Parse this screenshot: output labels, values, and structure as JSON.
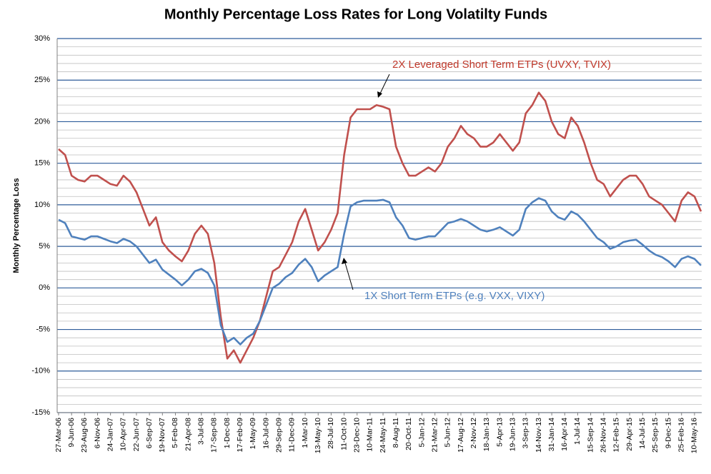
{
  "chart_data": {
    "type": "line",
    "title": "Monthly Percentage Loss Rates for Long Volatilty Funds",
    "y_label": "Monthly Percentage Loss",
    "categories": [
      "27-Mar-06",
      null,
      "9-Jun-06",
      null,
      "23-Aug-06",
      null,
      "6-Nov-06",
      null,
      "24-Jan-07",
      null,
      "10-Apr-07",
      null,
      "22-Jun-07",
      null,
      "6-Sep-07",
      null,
      "19-Nov-07",
      null,
      "5-Feb-08",
      null,
      "21-Apr-08",
      null,
      "3-Jul-08",
      null,
      "17-Sep-08",
      null,
      "1-Dec-08",
      null,
      "17-Feb-09",
      null,
      "1-May-09",
      null,
      "16-Jul-09",
      null,
      "29-Sep-09",
      null,
      "11-Dec-09",
      null,
      "1-Mar-10",
      null,
      "13-May-10",
      null,
      "28-Jul-10",
      null,
      "11-Oct-10",
      null,
      "23-Dec-10",
      null,
      "10-Mar-11",
      null,
      "24-May-11",
      null,
      "8-Aug-11",
      null,
      "20-Oct-11",
      null,
      "5-Jan-12",
      null,
      "21-Mar-12",
      null,
      "5-Jun-12",
      null,
      "17-Aug-12",
      null,
      "2-Nov-12",
      null,
      "18-Jan-13",
      null,
      "5-Apr-13",
      null,
      "19-Jun-13",
      null,
      "3-Sep-13",
      null,
      "14-Nov-13",
      null,
      "31-Jan-14",
      null,
      "16-Apr-14",
      null,
      "1-Jul-14",
      null,
      "15-Sep-14",
      null,
      "26-Nov-14",
      null,
      "12-Feb-15",
      null,
      "29-Apr-15",
      null,
      "14-Jul-15",
      null,
      "25-Sep-15",
      null,
      "9-Dec-15",
      null,
      "25-Feb-16",
      null,
      "10-May-16",
      null
    ],
    "series": [
      {
        "name": "2X Leveraged Short Term ETPs (UVXY, TVIX)",
        "color": "#c0504d",
        "values": [
          16.7,
          16,
          13.5,
          13,
          12.8,
          13.5,
          13.5,
          13,
          12.5,
          12.3,
          13.5,
          12.8,
          11.5,
          9.5,
          7.5,
          8.5,
          5.5,
          4.5,
          3.8,
          3.2,
          4.5,
          6.5,
          7.5,
          6.5,
          3.0,
          -3.5,
          -8.5,
          -7.5,
          -9.0,
          -7.5,
          -6.0,
          -4.0,
          -1.0,
          2.0,
          2.5,
          4,
          5.5,
          8,
          9.5,
          7,
          4.5,
          5.5,
          7,
          9,
          16,
          20.5,
          21.5,
          21.5,
          21.5,
          22,
          21.8,
          21.5,
          17,
          15,
          13.5,
          13.5,
          14,
          14.5,
          14,
          15,
          17,
          18,
          19.5,
          18.5,
          18,
          17,
          17,
          17.5,
          18.5,
          17.5,
          16.5,
          17.5,
          21,
          22,
          23.5,
          22.5,
          20,
          18.5,
          18,
          20.5,
          19.5,
          17.5,
          15,
          13,
          12.5,
          11,
          12,
          13,
          13.5,
          13.5,
          12.5,
          11,
          10.5,
          10,
          9,
          8,
          10.5,
          11.5,
          11,
          9.2
        ]
      },
      {
        "name": "1X Short Term ETPs (e.g. VXX, VIXY)",
        "color": "#4f81bd",
        "values": [
          8.2,
          7.8,
          6.2,
          6,
          5.8,
          6.2,
          6.2,
          5.9,
          5.6,
          5.4,
          5.9,
          5.6,
          5.0,
          4.0,
          3.0,
          3.4,
          2.2,
          1.6,
          1.0,
          0.3,
          1.0,
          2.0,
          2.3,
          1.8,
          0.3,
          -4.5,
          -6.5,
          -6.0,
          -6.8,
          -6.0,
          -5.5,
          -4.0,
          -2.0,
          0,
          0.5,
          1.3,
          1.8,
          2.8,
          3.5,
          2.5,
          0.8,
          1.5,
          2,
          2.5,
          6.5,
          9.8,
          10.3,
          10.5,
          10.5,
          10.5,
          10.6,
          10.3,
          8.5,
          7.5,
          6,
          5.8,
          6,
          6.2,
          6.2,
          7,
          7.8,
          8,
          8.3,
          8,
          7.5,
          7,
          6.8,
          7,
          7.3,
          6.8,
          6.3,
          7,
          9.5,
          10.3,
          10.8,
          10.5,
          9.2,
          8.5,
          8.2,
          9.2,
          8.8,
          8,
          7,
          6,
          5.5,
          4.7,
          5,
          5.5,
          5.7,
          5.8,
          5.2,
          4.5,
          4,
          3.7,
          3.2,
          2.5,
          3.5,
          3.8,
          3.5,
          2.7
        ]
      }
    ],
    "ylim": [
      -15,
      30
    ],
    "yticks": [
      {
        "value": -15,
        "label": "-15%"
      },
      {
        "value": -10,
        "label": "-10%"
      },
      {
        "value": -5,
        "label": "-5%"
      },
      {
        "value": 0,
        "label": "0%"
      },
      {
        "value": 5,
        "label": "5%"
      },
      {
        "value": 10,
        "label": "10%"
      },
      {
        "value": 15,
        "label": "15%"
      },
      {
        "value": 20,
        "label": "20%"
      },
      {
        "value": 25,
        "label": "25%"
      },
      {
        "value": 30,
        "label": "30%"
      }
    ],
    "grid": true
  }
}
